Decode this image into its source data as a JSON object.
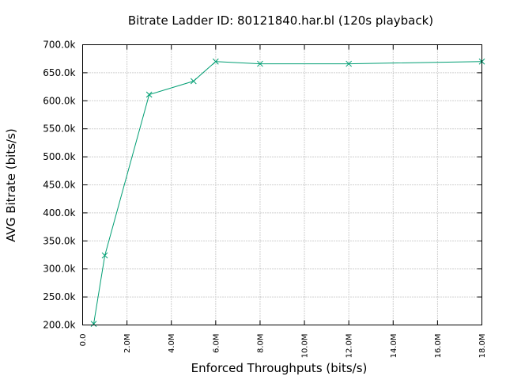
{
  "chart_data": {
    "type": "line",
    "title": "Bitrate Ladder ID: 80121840.har.bl (120s playback)",
    "xlabel": "Enforced Throughputs (bits/s)",
    "ylabel": "AVG Bitrate (bits/s)",
    "xlim": [
      0,
      18000000
    ],
    "ylim": [
      200000,
      700000
    ],
    "grid": true,
    "x_ticks": [
      {
        "value": 0,
        "label": "0.0"
      },
      {
        "value": 2000000,
        "label": "2.0M"
      },
      {
        "value": 4000000,
        "label": "4.0M"
      },
      {
        "value": 6000000,
        "label": "6.0M"
      },
      {
        "value": 8000000,
        "label": "8.0M"
      },
      {
        "value": 10000000,
        "label": "10.0M"
      },
      {
        "value": 12000000,
        "label": "12.0M"
      },
      {
        "value": 14000000,
        "label": "14.0M"
      },
      {
        "value": 16000000,
        "label": "16.0M"
      },
      {
        "value": 18000000,
        "label": "18.0M"
      }
    ],
    "y_ticks": [
      {
        "value": 200000,
        "label": "200.0k"
      },
      {
        "value": 250000,
        "label": "250.0k"
      },
      {
        "value": 300000,
        "label": "300.0k"
      },
      {
        "value": 350000,
        "label": "350.0k"
      },
      {
        "value": 400000,
        "label": "400.0k"
      },
      {
        "value": 450000,
        "label": "450.0k"
      },
      {
        "value": 500000,
        "label": "500.0k"
      },
      {
        "value": 550000,
        "label": "550.0k"
      },
      {
        "value": 600000,
        "label": "600.0k"
      },
      {
        "value": 650000,
        "label": "650.0k"
      },
      {
        "value": 700000,
        "label": "700.0k"
      }
    ],
    "series": [
      {
        "color": "#009e73",
        "marker": "x",
        "x": [
          500000,
          1000000,
          3000000,
          5000000,
          6000000,
          8000000,
          12000000,
          18000000
        ],
        "y": [
          202000,
          324000,
          611000,
          635000,
          670000,
          666000,
          666000,
          670000
        ]
      }
    ]
  }
}
